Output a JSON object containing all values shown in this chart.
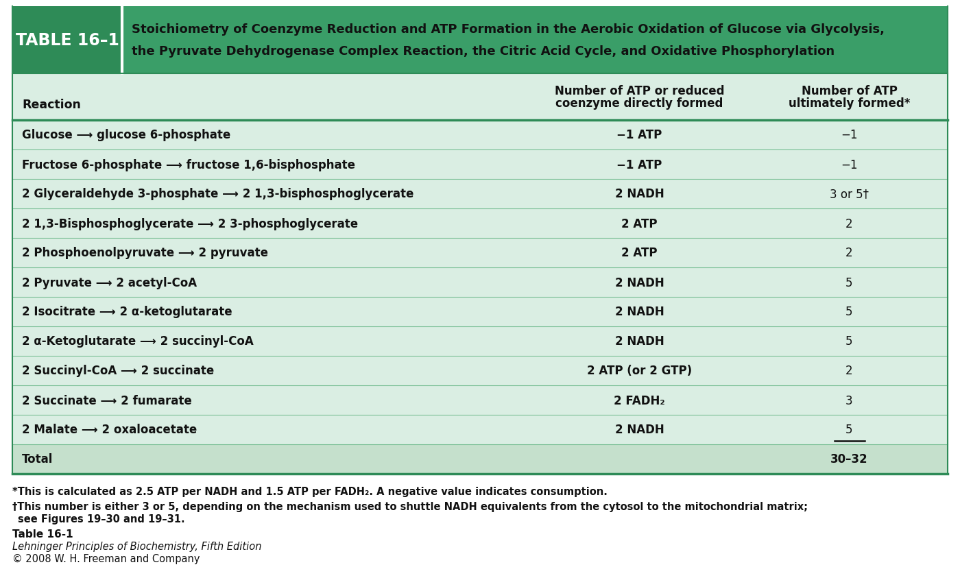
{
  "title_label": "TABLE 16–1",
  "title_text_line1": "Stoichiometry of Coenzyme Reduction and ATP Formation in the Aerobic Oxidation of Glucose via Glycolysis,",
  "title_text_line2": "the Pyruvate Dehydrogenase Complex Reaction, the Citric Acid Cycle, and Oxidative Phosphorylation",
  "col_header_reaction": "Reaction",
  "col_header_direct_line1": "Number of ATP or reduced",
  "col_header_direct_line2": "coenzyme directly formed",
  "col_header_ultimate_line1": "Number of ATP",
  "col_header_ultimate_line2": "ultimately formed*",
  "rows": [
    {
      "reaction": "Glucose ⟶ glucose 6-phosphate",
      "direct": "−1 ATP",
      "ultimate": "−1",
      "bold_reaction": true,
      "underline_ultimate": false,
      "total_row": false
    },
    {
      "reaction": "Fructose 6-phosphate ⟶ fructose 1,6-bisphosphate",
      "direct": "−1 ATP",
      "ultimate": "−1",
      "bold_reaction": true,
      "underline_ultimate": false,
      "total_row": false
    },
    {
      "reaction": "2 Glyceraldehyde 3-phosphate ⟶ 2 1,3-bisphosphoglycerate",
      "direct": "2 NADH",
      "ultimate": "3 or 5†",
      "bold_reaction": true,
      "underline_ultimate": false,
      "total_row": false
    },
    {
      "reaction": "2 1,3-Bisphosphoglycerate ⟶ 2 3-phosphoglycerate",
      "direct": "2 ATP",
      "ultimate": "2",
      "bold_reaction": true,
      "underline_ultimate": false,
      "total_row": false
    },
    {
      "reaction": "2 Phosphoenolpyruvate ⟶ 2 pyruvate",
      "direct": "2 ATP",
      "ultimate": "2",
      "bold_reaction": true,
      "underline_ultimate": false,
      "total_row": false
    },
    {
      "reaction": "2 Pyruvate ⟶ 2 acetyl-CoA",
      "direct": "2 NADH",
      "ultimate": "5",
      "bold_reaction": true,
      "underline_ultimate": false,
      "total_row": false
    },
    {
      "reaction": "2 Isocitrate ⟶ 2 α-ketoglutarate",
      "direct": "2 NADH",
      "ultimate": "5",
      "bold_reaction": true,
      "underline_ultimate": false,
      "total_row": false
    },
    {
      "reaction": "2 α-Ketoglutarate ⟶ 2 succinyl-CoA",
      "direct": "2 NADH",
      "ultimate": "5",
      "bold_reaction": true,
      "underline_ultimate": false,
      "total_row": false
    },
    {
      "reaction": "2 Succinyl-CoA ⟶ 2 succinate",
      "direct": "2 ATP (or 2 GTP)",
      "ultimate": "2",
      "bold_reaction": true,
      "underline_ultimate": false,
      "total_row": false
    },
    {
      "reaction": "2 Succinate ⟶ 2 fumarate",
      "direct": "2 FADH₂",
      "ultimate": "3",
      "bold_reaction": true,
      "underline_ultimate": false,
      "total_row": false
    },
    {
      "reaction": "2 Malate ⟶ 2 oxaloacetate",
      "direct": "2 NADH",
      "ultimate": "5",
      "bold_reaction": true,
      "underline_ultimate": true,
      "total_row": false
    },
    {
      "reaction": "Total",
      "direct": "",
      "ultimate": "30–32",
      "bold_reaction": true,
      "underline_ultimate": false,
      "total_row": true
    }
  ],
  "footnote1": "*This is calculated as 2.5 ATP per NADH and 1.5 ATP per FADH₂. A negative value indicates consumption.",
  "footnote2": "†This number is either 3 or 5, depending on the mechanism used to shuttle NADH equivalents from the cytosol to the mitochondrial matrix;",
  "footnote2b": " see Figures 19–30 and 19–31.",
  "footnote3": "Table 16-1",
  "footnote4": "Lehninger Principles of Biochemistry, Fifth Edition",
  "footnote5": "© 2008 W. H. Freeman and Company",
  "dark_green": "#2e8b57",
  "header_green": "#3a9e68",
  "row_bg": "#daeee3",
  "total_bg": "#c5e0cc",
  "subheader_bg": "#daeee3",
  "divider_color": "#7abf95",
  "border_color": "#2e8b57",
  "text_dark": "#111111",
  "footnote_separator": "#2e8b57"
}
